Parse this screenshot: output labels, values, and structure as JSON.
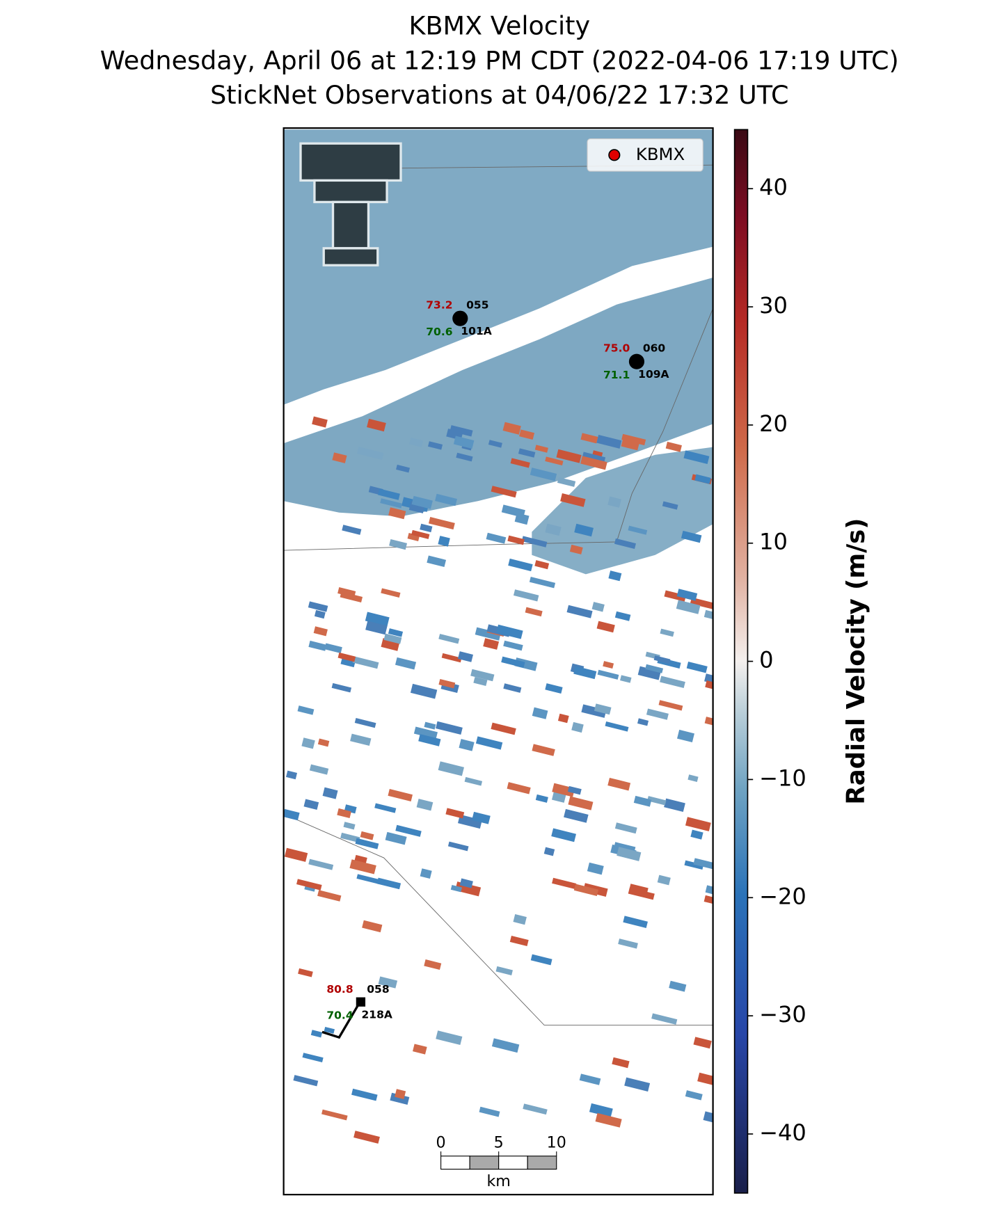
{
  "title": [
    "KBMX Velocity",
    "Wednesday, April 06 at 12:19 PM CDT (2022-04-06 17:19 UTC)",
    "StickNet Observations at 04/06/22 17:32 UTC"
  ],
  "legend": {
    "label": "KBMX",
    "color": "#e00000"
  },
  "colorbar": {
    "label": "Radial Velocity (m/s)",
    "lim": [
      -45,
      45
    ],
    "ticks": [
      {
        "value": -40,
        "label": "−40"
      },
      {
        "value": -30,
        "label": "−30"
      },
      {
        "value": -20,
        "label": "−20"
      },
      {
        "value": -10,
        "label": "−10"
      },
      0,
      10,
      20,
      30,
      40
    ]
  },
  "stations": [
    {
      "temperature": "73.2",
      "dewpoint": "70.6",
      "direction": "055",
      "id": "101A"
    },
    {
      "temperature": "75.0",
      "dewpoint": "71.1",
      "direction": "060",
      "id": "109A"
    },
    {
      "temperature": "80.8",
      "dewpoint": "70.4",
      "direction": "058",
      "id": "218A"
    }
  ],
  "scale_bar": {
    "ticks": [
      0,
      5,
      10
    ],
    "unit": "km"
  }
}
